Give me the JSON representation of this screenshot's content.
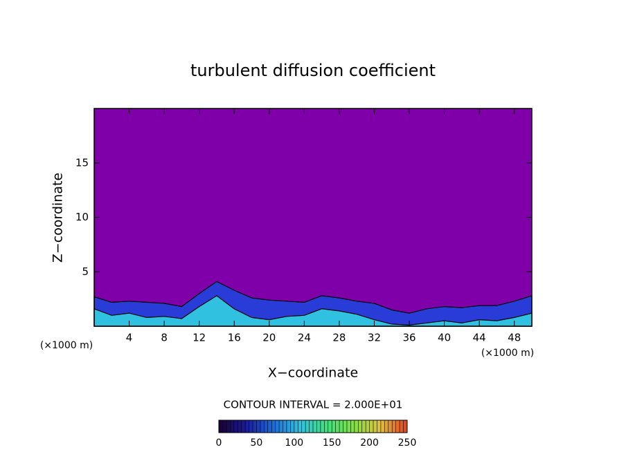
{
  "chart_data": {
    "type": "contour",
    "title": "turbulent diffusion coefficient",
    "x_label": "X−coordinate",
    "y_label": "Z−coordinate",
    "x_unit": "(×1000 m)",
    "x_unit_right": "(×1000 m)",
    "note": "CONTOUR INTERVAL = 2.000E+01",
    "xlim": [
      0,
      50
    ],
    "ylim": [
      0,
      20
    ],
    "xticks": [
      4,
      8,
      12,
      16,
      20,
      24,
      28,
      32,
      36,
      40,
      44,
      48
    ],
    "yticks": [
      5,
      10,
      15
    ],
    "background": "#7f00a8",
    "x": [
      0,
      2,
      4,
      6,
      8,
      10,
      12,
      14,
      16,
      18,
      20,
      22,
      24,
      26,
      28,
      30,
      32,
      34,
      36,
      38,
      40,
      42,
      44,
      46,
      48,
      50
    ],
    "series": [
      {
        "color": "#2a3cd8",
        "values": [
          2.7,
          2.2,
          2.3,
          2.2,
          2.1,
          1.8,
          3,
          4.1,
          3.3,
          2.6,
          2.4,
          2.3,
          2.2,
          2.8,
          2.6,
          2.3,
          2.1,
          1.5,
          1.2,
          1.6,
          1.8,
          1.7,
          1.9,
          1.9,
          2.3,
          2.8
        ]
      },
      {
        "color": "#30c0e0",
        "values": [
          1.6,
          1,
          1.2,
          0.8,
          0.9,
          0.7,
          1.8,
          2.8,
          1.6,
          0.8,
          0.6,
          0.9,
          1,
          1.6,
          1.4,
          1.1,
          0.6,
          0.2,
          0.1,
          0.3,
          0.5,
          0.3,
          0.6,
          0.5,
          0.8,
          1.2
        ]
      }
    ],
    "colorbar": {
      "lim": [
        0,
        250
      ],
      "ticks": [
        0,
        50,
        100,
        150,
        200,
        250
      ],
      "colors": [
        "#1a0030",
        "#1a1a9a",
        "#1a6ad8",
        "#30c0e0",
        "#40e080",
        "#80e040",
        "#e0c040",
        "#e04020"
      ]
    }
  }
}
